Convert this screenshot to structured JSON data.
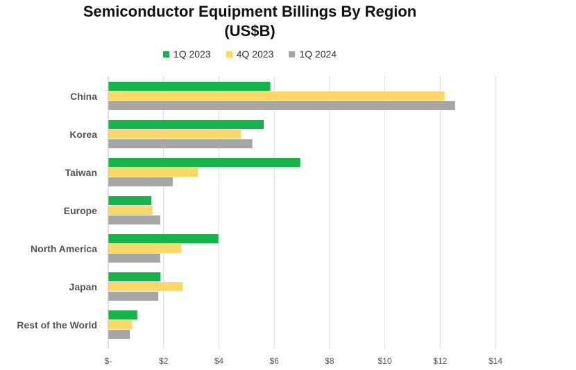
{
  "chart_data": {
    "type": "bar",
    "orientation": "horizontal",
    "title": "Semiconductor Equipment Billings By Region",
    "subtitle": "(US$B)",
    "categories": [
      "China",
      "Korea",
      "Taiwan",
      "Europe",
      "North America",
      "Japan",
      "Rest of the World"
    ],
    "series": [
      {
        "name": "1Q 2023",
        "color": "#14b44a",
        "values": [
          5.86,
          5.62,
          6.94,
          1.56,
          3.98,
          1.89,
          1.05
        ]
      },
      {
        "name": "4Q 2023",
        "color": "#fdd866",
        "values": [
          12.16,
          4.8,
          3.24,
          1.6,
          2.64,
          2.69,
          0.86
        ]
      },
      {
        "name": "1Q 2024",
        "color": "#a6a6a6",
        "values": [
          12.54,
          5.21,
          2.33,
          1.88,
          1.88,
          1.81,
          0.78
        ]
      }
    ],
    "xlim": [
      0,
      14
    ],
    "xticks": [
      0,
      2,
      4,
      6,
      8,
      10,
      12,
      14
    ],
    "xtick_labels": [
      "$-",
      "$2",
      "$4",
      "$6",
      "$8",
      "$10",
      "$12",
      "$14"
    ],
    "grid": "vertical",
    "legend_position": "top"
  }
}
